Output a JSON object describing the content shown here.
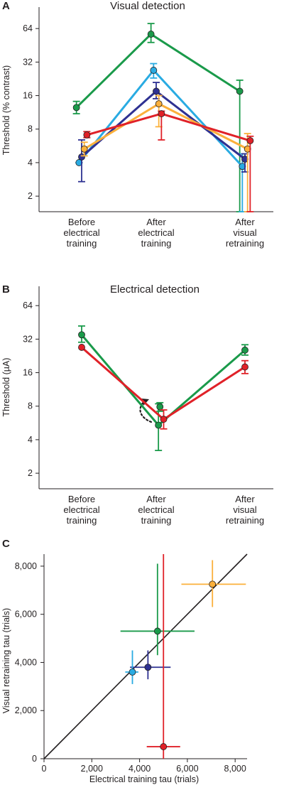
{
  "chart_data": [
    {
      "panel": "A",
      "type": "line",
      "title": "Visual detection",
      "ylabel": "Threshold (% contrast)",
      "yscale": "log2",
      "ylim": [
        1.45,
        80
      ],
      "yticks": [
        2,
        4,
        8,
        16,
        32,
        64
      ],
      "categories": [
        "Before electrical training",
        "After electrical training",
        "After visual retraining"
      ],
      "category_lines": [
        [
          "Before",
          "electrical",
          "training"
        ],
        [
          "After",
          "electrical",
          "training"
        ],
        [
          "After",
          "visual",
          "retraining"
        ]
      ],
      "series": [
        {
          "color": "#1a9a4a",
          "values": [
            12.5,
            57,
            17.5
          ],
          "err_low": [
            11,
            48,
            0.1
          ],
          "err_high": [
            14.2,
            71,
            22
          ]
        },
        {
          "color": "#29abe2",
          "values": [
            4,
            27,
            3.7
          ],
          "err_low": [
            4,
            23,
            0.1
          ],
          "err_high": [
            4,
            31,
            4.8
          ]
        },
        {
          "color": "#2e3192",
          "values": [
            4.5,
            17.5,
            4.3
          ],
          "err_low": [
            2.7,
            15,
            3.3
          ],
          "err_high": [
            6.4,
            21,
            4.8
          ]
        },
        {
          "color": "#fbb03b",
          "values": [
            5.3,
            13.5,
            5.3
          ],
          "err_low": [
            4.6,
            8.4,
            0.1
          ],
          "err_high": [
            6.1,
            16,
            7.3
          ]
        },
        {
          "color": "#e02128",
          "values": [
            7.1,
            11,
            6.3
          ],
          "err_low": [
            6.7,
            6.4,
            0.1
          ],
          "err_high": [
            7.6,
            11.6,
            6.9
          ]
        }
      ]
    },
    {
      "panel": "B",
      "type": "line",
      "title": "Electrical detection",
      "ylabel": "Threshold (µA)",
      "yscale": "log2",
      "ylim": [
        1.45,
        80
      ],
      "yticks": [
        2,
        4,
        8,
        16,
        32,
        64
      ],
      "categories": [
        "Before electrical training",
        "After electrical training",
        "After visual retraining"
      ],
      "category_lines": [
        [
          "Before",
          "electrical",
          "training"
        ],
        [
          "After",
          "electrical",
          "training"
        ],
        [
          "After",
          "visual",
          "retraining"
        ]
      ],
      "series": [
        {
          "color": "#1a9a4a",
          "values": [
            35,
            5.4,
            25.5
          ],
          "x_offset": [
            0,
            0.03,
            0
          ],
          "err_low": [
            30,
            3.2,
            23
          ],
          "err_high": [
            42,
            8.4,
            28.5
          ]
        },
        {
          "color": "#1a9a4a",
          "values": [
            null,
            7.9,
            null
          ],
          "x_offset": [
            0,
            0.05,
            0
          ],
          "err_low": [
            null,
            7.2,
            null
          ],
          "err_high": [
            null,
            8.6,
            null
          ]
        },
        {
          "color": "#e02128",
          "values": [
            27,
            6.1,
            18
          ],
          "x_offset": [
            0,
            0.1,
            0
          ],
          "err_low": [
            null,
            5,
            15.7
          ],
          "err_high": [
            null,
            7.4,
            20.5
          ]
        }
      ],
      "annotation": "dotted curved arrow"
    },
    {
      "panel": "C",
      "type": "scatter",
      "xlabel": "Electrical training tau (trials)",
      "ylabel": "Visual retraining tau (trials)",
      "xlim": [
        0,
        8500
      ],
      "ylim": [
        0,
        8500
      ],
      "xticks": [
        "0",
        "2,000",
        "4,000",
        "6,000",
        "8,000"
      ],
      "yticks": [
        "0",
        "2,000",
        "4,000",
        "6,000",
        "8,000"
      ],
      "tick_values": [
        0,
        2000,
        4000,
        6000,
        8000
      ],
      "identity_line": true,
      "points": [
        {
          "color": "#fbb03b",
          "x": 7050,
          "y": 7250,
          "xerr": [
            5750,
            8450
          ],
          "yerr": [
            6300,
            8250
          ]
        },
        {
          "color": "#1a9a4a",
          "x": 4750,
          "y": 5300,
          "xerr": [
            3200,
            6300
          ],
          "yerr": [
            4300,
            8100
          ]
        },
        {
          "color": "#2e3192",
          "x": 4350,
          "y": 3800,
          "xerr": [
            3600,
            5300
          ],
          "yerr": [
            3300,
            4500
          ]
        },
        {
          "color": "#29abe2",
          "x": 3700,
          "y": 3600,
          "xerr": [
            3400,
            3950
          ],
          "yerr": [
            3100,
            4500
          ]
        },
        {
          "color": "#e02128",
          "x": 5000,
          "y": 500,
          "xerr": [
            4300,
            5700
          ],
          "yerr": [
            0,
            8500
          ]
        }
      ]
    }
  ]
}
